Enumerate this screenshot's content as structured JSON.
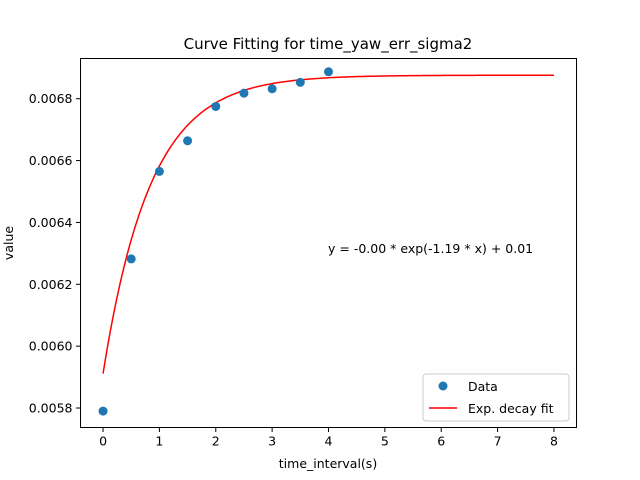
{
  "chart_data": {
    "type": "scatter",
    "title": "Curve Fitting for time_yaw_err_sigma2",
    "xlabel": "time_interval(s)",
    "ylabel": "value",
    "xlim": [
      -0.4,
      8.4
    ],
    "ylim": [
      0.005737,
      0.00693
    ],
    "x_ticks": [
      0,
      1,
      2,
      3,
      4,
      5,
      6,
      7,
      8
    ],
    "y_ticks": [
      0.0058,
      0.006,
      0.0062,
      0.0064,
      0.0066,
      0.0068
    ],
    "grid": false,
    "legend_position": "lower-right",
    "annotation": "y = -0.00 * exp(-1.19 * x) + 0.01",
    "series": [
      {
        "name": "Data",
        "kind": "scatter",
        "color": "#1f77b4",
        "x": [
          0,
          0.5,
          1.0,
          1.5,
          2.0,
          2.5,
          3.0,
          3.5,
          4.0
        ],
        "y": [
          0.00579,
          0.006282,
          0.006565,
          0.006664,
          0.006775,
          0.006818,
          0.006832,
          0.006853,
          0.006887
        ]
      },
      {
        "name": "Exp. decay fit",
        "kind": "line",
        "color": "#ff0000",
        "model": {
          "a": -0.000965,
          "b": 1.19,
          "c": 0.006876
        },
        "x_range": [
          0,
          8
        ]
      }
    ]
  }
}
